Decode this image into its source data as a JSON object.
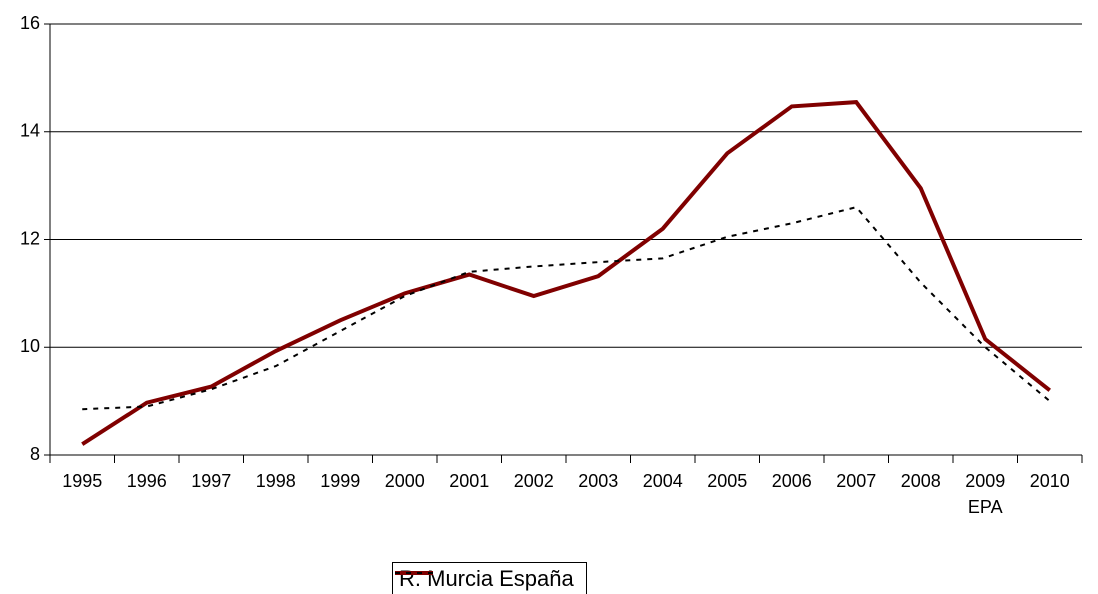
{
  "chart_data": {
    "type": "line",
    "categories": [
      "1995",
      "1996",
      "1997",
      "1998",
      "1999",
      "2000",
      "2001",
      "2002",
      "2003",
      "2004",
      "2005",
      "2006",
      "2007",
      "2008",
      "2009 EPA",
      "2010"
    ],
    "series": [
      {
        "name": "R. Murcia",
        "color": "#800000",
        "dash": "solid",
        "values": [
          8.2,
          8.97,
          9.27,
          9.93,
          10.5,
          11.0,
          11.35,
          10.95,
          11.32,
          12.2,
          13.6,
          14.47,
          14.55,
          12.95,
          10.15,
          9.2
        ]
      },
      {
        "name": "España",
        "color": "#000000",
        "dash": "dotted",
        "values": [
          8.85,
          8.9,
          9.22,
          9.65,
          10.3,
          10.95,
          11.4,
          11.5,
          11.58,
          11.65,
          12.05,
          12.3,
          12.6,
          11.2,
          10.0,
          9.0
        ]
      }
    ],
    "ylim": [
      8,
      16
    ],
    "yticks": [
      8,
      10,
      12,
      14,
      16
    ],
    "grid": true,
    "legend": "bottom"
  }
}
